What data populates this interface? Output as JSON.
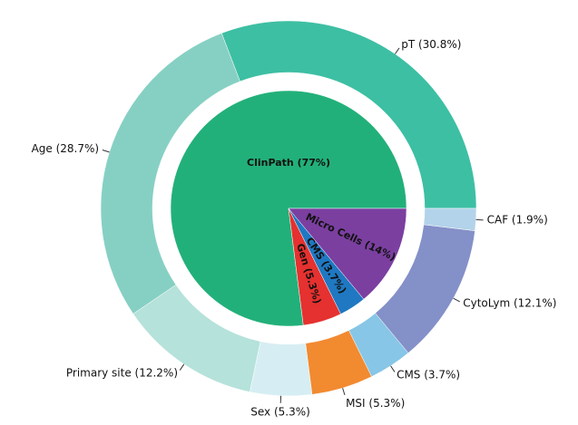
{
  "chart_data": {
    "type": "pie",
    "series": [
      {
        "values": [
          77,
          5.3,
          3.7,
          14
        ],
        "value_labels": [
          "ClinPath (77%)",
          "Gen (5.3%)",
          "CMS (3.7%)",
          "Micro Cells (14%)"
        ],
        "colors": [
          "#22b07a",
          "#e5312f",
          "#1f78c1",
          "#7b3fa0"
        ]
      },
      {
        "values": [
          30.8,
          28.7,
          12.2,
          5.3,
          5.3,
          3.7,
          12.1,
          1.9
        ],
        "value_labels": [
          "pT (30.8%)",
          "Age (28.7%)",
          "Primary site (12.2%)",
          "Sex (5.3%)",
          "MSI (5.3%)",
          "CMS (3.7%)",
          "CytoLym (12.1%)",
          "CAF (1.9%)"
        ],
        "colors": [
          "#3dbfa3",
          "#86d0c3",
          "#b5e2da",
          "#d6eef3",
          "#f28a30",
          "#87c6e6",
          "#8490c8",
          "#b3d3ea"
        ]
      }
    ]
  }
}
